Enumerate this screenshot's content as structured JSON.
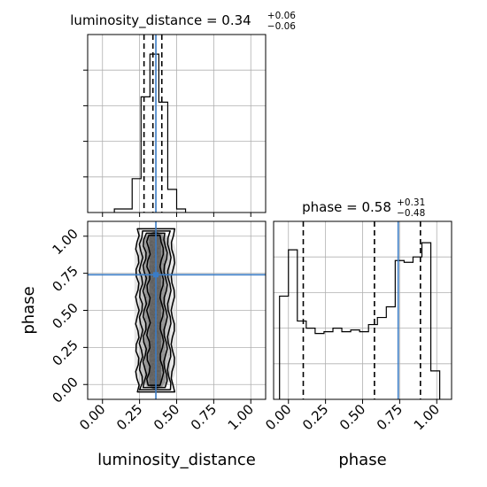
{
  "chart_data": [
    {
      "type": "histogram",
      "panel": "marginal luminosity_distance",
      "title": {
        "prefix": "luminosity_distance = 0.34",
        "sup": "+0.06",
        "sub": "−0.06"
      },
      "xlim": [
        -0.1,
        1.1
      ],
      "x_ticks": [
        0.0,
        0.25,
        0.5,
        0.75,
        1.0
      ],
      "bin_edges": [
        0.08,
        0.2,
        0.26,
        0.32,
        0.38,
        0.44,
        0.5,
        0.56
      ],
      "relative_counts": [
        0.02,
        0.19,
        0.65,
        0.89,
        0.62,
        0.13,
        0.02
      ],
      "quantile_lines": [
        0.28,
        0.34,
        0.4
      ],
      "truth": 0.36,
      "grid": true
    },
    {
      "type": "histogram",
      "panel": "marginal phase",
      "title": {
        "prefix": "phase = 0.58",
        "sup": "+0.31",
        "sub": "−0.48"
      },
      "xlim": [
        -0.1,
        1.1
      ],
      "x_ticks": [
        0.0,
        0.25,
        0.5,
        0.75,
        1.0
      ],
      "x_tick_labels": [
        "0.00",
        "0.25",
        "0.50",
        "0.75",
        "1.00"
      ],
      "xlabel": "phase",
      "bin_edges": [
        -0.06,
        0.0,
        0.06,
        0.12,
        0.18,
        0.24,
        0.3,
        0.36,
        0.42,
        0.48,
        0.54,
        0.6,
        0.66,
        0.72,
        0.78,
        0.84,
        0.9,
        0.96,
        1.02
      ],
      "relative_counts": [
        0.58,
        0.84,
        0.44,
        0.4,
        0.37,
        0.38,
        0.4,
        0.38,
        0.39,
        0.38,
        0.42,
        0.46,
        0.52,
        0.78,
        0.77,
        0.8,
        0.88,
        0.16
      ],
      "quantile_lines": [
        0.1,
        0.58,
        0.89
      ],
      "truth": 0.74,
      "grid": true
    },
    {
      "type": "scatter",
      "panel": "2d luminosity_distance vs phase",
      "style": "density contours",
      "xlabel": "luminosity_distance",
      "ylabel": "phase",
      "xlim": [
        -0.1,
        1.1
      ],
      "ylim": [
        -0.1,
        1.1
      ],
      "x_ticks": [
        0.0,
        0.25,
        0.5,
        0.75,
        1.0
      ],
      "x_tick_labels": [
        "0.00",
        "0.25",
        "0.50",
        "0.75",
        "1.00"
      ],
      "y_ticks": [
        0.0,
        0.25,
        0.5,
        0.75,
        1.0
      ],
      "y_tick_labels": [
        "0.00",
        "0.25",
        "0.50",
        "0.75",
        "1.00"
      ],
      "x_spread": [
        0.22,
        0.48
      ],
      "y_spread": [
        0.0,
        1.0
      ],
      "contour_half_widths": [
        0.12,
        0.095,
        0.07,
        0.045
      ],
      "truth": {
        "x": 0.36,
        "y": 0.74
      },
      "grid": true
    }
  ]
}
